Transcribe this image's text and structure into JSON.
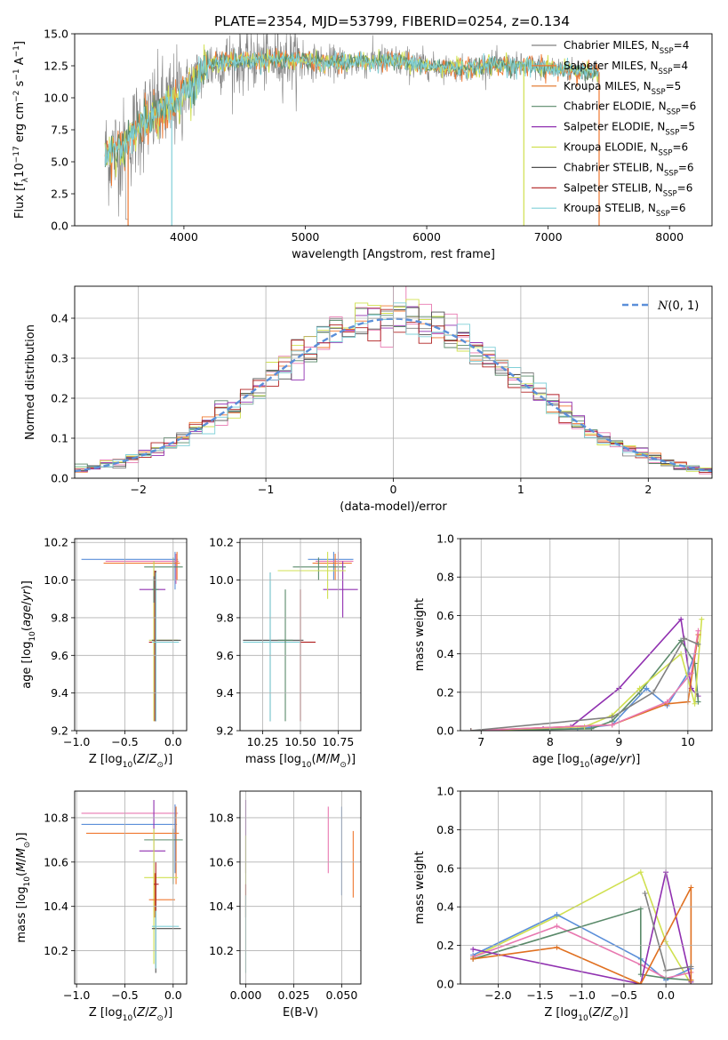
{
  "figure_title": "PLATE=2354, MJD=53799, FIBERID=0254, z=0.134",
  "colors": {
    "chabrier_miles": "#808080",
    "salpeter_miles": "#f07830",
    "kroupa_miles": "#e07020",
    "chabrier_elodie": "#5a8a6a",
    "salpeter_elodie": "#9030b0",
    "kroupa_elodie": "#d0e050",
    "chabrier_stelib": "#505050",
    "salpeter_stelib": "#b02020",
    "kroupa_stelib": "#80d0d8",
    "gauss": "#5b8fd9",
    "pink": "#e878b0",
    "blue": "#5b8fd9",
    "grid": "#b0b0b0"
  },
  "chart_data": [
    {
      "id": "spectrum",
      "type": "line",
      "title": "PLATE=2354, MJD=53799, FIBERID=0254, z=0.134",
      "xlabel": "wavelength [Angstrom, rest frame]",
      "ylabel": "Flux [f_λ 10^{-17} erg cm^{-2} s^{-1} A^{-1}]",
      "xlim": [
        3100,
        8350
      ],
      "ylim": [
        0,
        15
      ],
      "xticks": [
        "4000",
        "5000",
        "6000",
        "7000",
        "8000"
      ],
      "yticks": [
        "0.0",
        "2.5",
        "5.0",
        "7.5",
        "10.0",
        "12.5",
        "15.0"
      ],
      "grid": false,
      "legend_position": "top-right",
      "legend": [
        {
          "label": "Chabrier MILES, N",
          "sub": "SSP",
          "n": "=4",
          "color": "#808080"
        },
        {
          "label": "Salpeter MILES, N",
          "sub": "SSP",
          "n": "=4",
          "color": "#f07830"
        },
        {
          "label": "Kroupa MILES, N",
          "sub": "SSP",
          "n": "=5",
          "color": "#e07020"
        },
        {
          "label": "Chabrier ELODIE, N",
          "sub": "SSP",
          "n": "=6",
          "color": "#5a8a6a"
        },
        {
          "label": "Salpeter ELODIE, N",
          "sub": "SSP",
          "n": "=5",
          "color": "#9030b0"
        },
        {
          "label": "Kroupa ELODIE, N",
          "sub": "SSP",
          "n": "=6",
          "color": "#d0e050"
        },
        {
          "label": "Chabrier STELIB, N",
          "sub": "SSP",
          "n": "=6",
          "color": "#505050"
        },
        {
          "label": "Salpeter STELIB, N",
          "sub": "SSP",
          "n": "=6",
          "color": "#b02020"
        },
        {
          "label": "Kroupa STELIB, N",
          "sub": "SSP",
          "n": "=6",
          "color": "#80d0d8"
        }
      ],
      "envelope": {
        "x": [
          3350,
          3500,
          3600,
          3700,
          3800,
          3900,
          4000,
          4100,
          4200,
          4300,
          4500,
          4700,
          4900,
          5100,
          5300,
          5500,
          5700,
          5900,
          6100,
          6300,
          6500,
          6700,
          6900,
          7100,
          7300,
          7400
        ],
        "y": [
          5.5,
          6.0,
          7.5,
          8.5,
          9.0,
          9.5,
          10.5,
          11.5,
          12.5,
          12.8,
          12.9,
          13.0,
          13.0,
          12.8,
          12.7,
          12.8,
          12.9,
          12.6,
          12.4,
          12.3,
          12.6,
          12.5,
          12.4,
          12.2,
          12.1,
          12.0
        ]
      }
    },
    {
      "id": "residual_hist",
      "type": "bar",
      "xlabel": "(data-model)/error",
      "ylabel": "Normed distribution",
      "xlim": [
        -2.5,
        2.5
      ],
      "ylim": [
        0,
        0.48
      ],
      "xticks": [
        "−2",
        "−1",
        "0",
        "1",
        "2"
      ],
      "yticks": [
        "0.0",
        "0.1",
        "0.2",
        "0.3",
        "0.4"
      ],
      "grid": true,
      "legend_position": "top-right",
      "legend": [
        {
          "label": "N(0, 1)",
          "color": "#5b8fd9"
        }
      ],
      "bin_width": 0.1
    },
    {
      "id": "age_vs_Z",
      "type": "scatter",
      "xlabel": "Z [log10(Z/Z⊙)]",
      "ylabel": "age  [log10(age/yr)]",
      "xlim": [
        -1.02,
        0.14
      ],
      "ylim": [
        9.2,
        10.22
      ],
      "xticks": [
        "−1.0",
        "−0.5",
        "0.0"
      ],
      "yticks": [
        "9.2",
        "9.4",
        "9.6",
        "9.8",
        "10.0",
        "10.2"
      ],
      "grid": true
    },
    {
      "id": "age_vs_mass",
      "type": "scatter",
      "xlabel": "mass [log10(M/M⊙)]",
      "xlim": [
        10.1,
        10.9
      ],
      "ylim": [
        9.2,
        10.22
      ],
      "xticks": [
        "10.25",
        "10.50",
        "10.75"
      ],
      "yticks": [
        "9.2",
        "9.4",
        "9.6",
        "9.8",
        "10.0",
        "10.2"
      ],
      "grid": true
    },
    {
      "id": "massweight_vs_age",
      "type": "line",
      "xlabel": "age  [log10(age/yr)]",
      "ylabel": "mass weight",
      "xlim": [
        6.7,
        10.35
      ],
      "ylim": [
        0,
        1.0
      ],
      "xticks": [
        "7",
        "8",
        "9",
        "10"
      ],
      "yticks": [
        "0.0",
        "0.2",
        "0.4",
        "0.6",
        "0.8",
        "1.0"
      ],
      "grid": true,
      "series": [
        {
          "color": "#9030b0",
          "x": [
            6.85,
            7.9,
            8.3,
            9.0,
            9.9,
            10.05,
            10.15
          ],
          "y": [
            0.0,
            0.01,
            0.02,
            0.22,
            0.58,
            0.22,
            0.18
          ]
        },
        {
          "color": "#5b8fd9",
          "x": [
            6.85,
            8.4,
            8.9,
            9.4,
            9.7,
            10.0,
            10.1
          ],
          "y": [
            0.0,
            0.01,
            0.03,
            0.22,
            0.13,
            0.3,
            0.4
          ]
        },
        {
          "color": "#5a8a6a",
          "x": [
            6.85,
            8.6,
            8.9,
            9.3,
            9.9,
            10.1,
            10.15
          ],
          "y": [
            0.0,
            0.01,
            0.05,
            0.2,
            0.47,
            0.35,
            0.15
          ]
        },
        {
          "color": "#d0e050",
          "x": [
            6.85,
            8.5,
            8.9,
            9.3,
            9.9,
            10.1,
            10.2
          ],
          "y": [
            0.0,
            0.02,
            0.08,
            0.22,
            0.4,
            0.14,
            0.58
          ]
        },
        {
          "color": "#e07020",
          "x": [
            6.85,
            8.9,
            9.7,
            10.0,
            10.15
          ],
          "y": [
            0.0,
            0.03,
            0.14,
            0.15,
            0.5
          ]
        },
        {
          "color": "#e878b0",
          "x": [
            6.85,
            8.9,
            9.7,
            10.05,
            10.15
          ],
          "y": [
            0.0,
            0.03,
            0.15,
            0.3,
            0.52
          ]
        },
        {
          "color": "#808080",
          "x": [
            6.85,
            8.9,
            9.5,
            9.95,
            10.15
          ],
          "y": [
            0.0,
            0.07,
            0.2,
            0.48,
            0.45
          ]
        }
      ]
    },
    {
      "id": "mass_vs_Z",
      "type": "scatter",
      "xlabel": "Z [log10(Z/Z⊙)]",
      "ylabel": "mass [log10(M/M⊙)]",
      "xlim": [
        -1.02,
        0.14
      ],
      "ylim": [
        10.05,
        10.92
      ],
      "xticks": [
        "−1.0",
        "−0.5",
        "0.0"
      ],
      "yticks": [
        "10.2",
        "10.4",
        "10.6",
        "10.8"
      ],
      "grid": true
    },
    {
      "id": "mass_vs_ebv",
      "type": "scatter",
      "xlabel": "E(B-V)",
      "xlim": [
        -0.003,
        0.06
      ],
      "ylim": [
        10.05,
        10.92
      ],
      "xticks": [
        "0.000",
        "0.025",
        "0.050"
      ],
      "yticks": [
        "10.2",
        "10.4",
        "10.6",
        "10.8"
      ],
      "grid": true
    },
    {
      "id": "massweight_vs_Z",
      "type": "line",
      "xlabel": "Z [log10(Z/Z⊙)]",
      "ylabel": "mass weight",
      "xlim": [
        -2.45,
        0.55
      ],
      "ylim": [
        0,
        1.0
      ],
      "xticks": [
        "−2.0",
        "−1.5",
        "−1.0",
        "−0.5",
        "0.0"
      ],
      "yticks": [
        "0.0",
        "0.2",
        "0.4",
        "0.6",
        "0.8",
        "1.0"
      ],
      "grid": true,
      "series": [
        {
          "color": "#d0e050",
          "x": [
            -2.3,
            -1.3,
            -0.3,
            0.0,
            0.3
          ],
          "y": [
            0.14,
            0.35,
            0.58,
            0.22,
            0.0
          ]
        },
        {
          "color": "#5b8fd9",
          "x": [
            -2.3,
            -1.3,
            -0.3,
            0.0,
            0.3
          ],
          "y": [
            0.15,
            0.36,
            0.13,
            0.02,
            0.08
          ]
        },
        {
          "color": "#e878b0",
          "x": [
            -2.3,
            -1.3,
            -0.3,
            0.0,
            0.3
          ],
          "y": [
            0.14,
            0.3,
            0.1,
            0.03,
            0.06
          ]
        },
        {
          "color": "#5a8a6a",
          "x": [
            -2.3,
            -0.3,
            -0.3,
            0.0,
            0.3
          ],
          "y": [
            0.13,
            0.39,
            0.05,
            0.03,
            0.02
          ]
        },
        {
          "color": "#9030b0",
          "x": [
            -2.3,
            -0.3,
            0.0,
            0.3
          ],
          "y": [
            0.18,
            0.0,
            0.58,
            0.01
          ]
        },
        {
          "color": "#e07020",
          "x": [
            -2.3,
            -1.3,
            -0.3,
            0.3,
            0.3
          ],
          "y": [
            0.13,
            0.19,
            0.0,
            0.5,
            0.02
          ]
        },
        {
          "color": "#808080",
          "x": [
            -0.25,
            0.0,
            0.3
          ],
          "y": [
            0.47,
            0.07,
            0.09
          ]
        }
      ]
    }
  ]
}
